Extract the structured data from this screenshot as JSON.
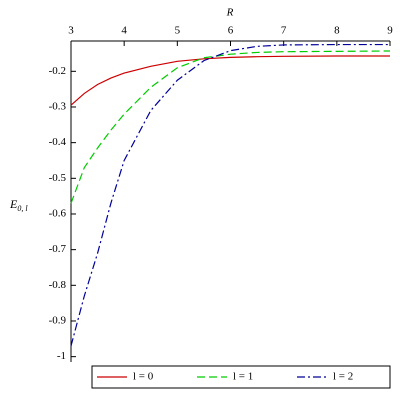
{
  "chart_data": {
    "type": "line",
    "xlabel": "R",
    "ylabel": "E",
    "ylabel_sub": "0, l",
    "x": [
      3,
      3.25,
      3.5,
      3.75,
      4,
      4.5,
      5,
      5.5,
      6,
      6.5,
      7,
      8,
      9
    ],
    "series": [
      {
        "name": "l = 0",
        "color": "#cc0000",
        "dash": "solid",
        "values": [
          -0.295,
          -0.262,
          -0.237,
          -0.219,
          -0.205,
          -0.186,
          -0.172,
          -0.165,
          -0.161,
          -0.159,
          -0.158,
          -0.157,
          -0.157
        ]
      },
      {
        "name": "l = 1",
        "color": "#00cc00",
        "dash": "dashed",
        "values": [
          -0.57,
          -0.47,
          -0.415,
          -0.365,
          -0.32,
          -0.245,
          -0.19,
          -0.162,
          -0.152,
          -0.147,
          -0.145,
          -0.144,
          -0.143
        ]
      },
      {
        "name": "l = 2",
        "color": "#000099",
        "dash": "dashdot",
        "values": [
          -0.97,
          -0.83,
          -0.71,
          -0.57,
          -0.45,
          -0.31,
          -0.225,
          -0.17,
          -0.142,
          -0.13,
          -0.126,
          -0.125,
          -0.125
        ]
      }
    ],
    "xlim": [
      3,
      9
    ],
    "xticks": [
      3,
      4,
      5,
      6,
      7,
      8,
      9
    ],
    "ylim": [
      -1.015,
      -0.115
    ],
    "yticks": [
      -0.2,
      -0.3,
      -0.4,
      -0.5,
      -0.6,
      -0.7,
      -0.8,
      -0.9,
      -1
    ],
    "legend": "bottom"
  }
}
